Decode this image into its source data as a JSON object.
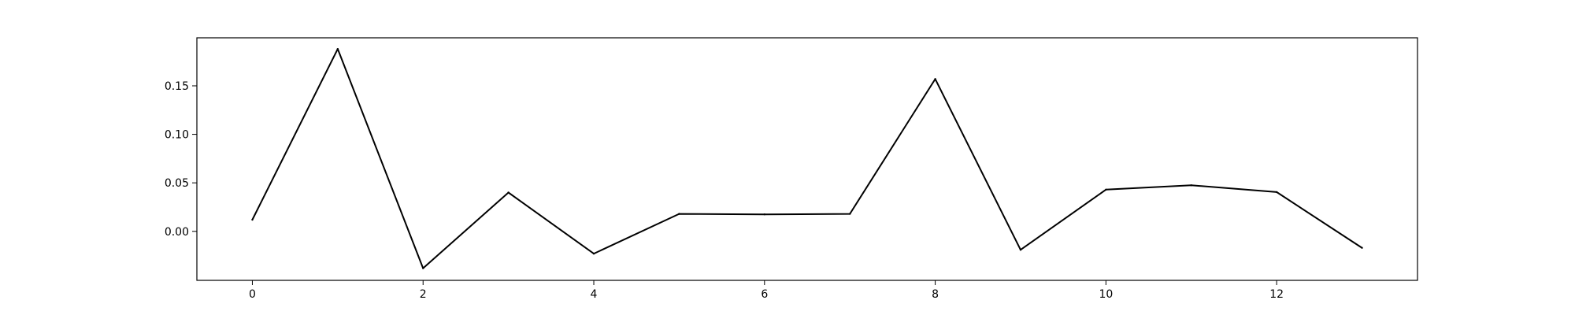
{
  "chart_data": {
    "type": "line",
    "title": "",
    "xlabel": "",
    "ylabel": "",
    "xlim": [
      -0.65,
      13.65
    ],
    "ylim": [
      -0.0505,
      0.1995
    ],
    "x": [
      0,
      1,
      2,
      3,
      4,
      5,
      6,
      7,
      8,
      9,
      10,
      11,
      12,
      13
    ],
    "series": [
      {
        "name": "",
        "color": "#000000",
        "values": [
          0.012,
          0.188,
          -0.038,
          0.04,
          -0.023,
          0.018,
          0.0175,
          0.018,
          0.157,
          -0.019,
          0.043,
          0.0475,
          0.0405,
          -0.017
        ]
      }
    ],
    "xticks": [
      0,
      2,
      4,
      6,
      8,
      10,
      12
    ],
    "xtick_labels": [
      "0",
      "2",
      "4",
      "6",
      "8",
      "10",
      "12"
    ],
    "yticks": [
      0.0,
      0.05,
      0.1,
      0.15
    ],
    "ytick_labels": [
      "0.00",
      "0.05",
      "0.10",
      "0.15"
    ],
    "grid": false,
    "legend": "none"
  }
}
